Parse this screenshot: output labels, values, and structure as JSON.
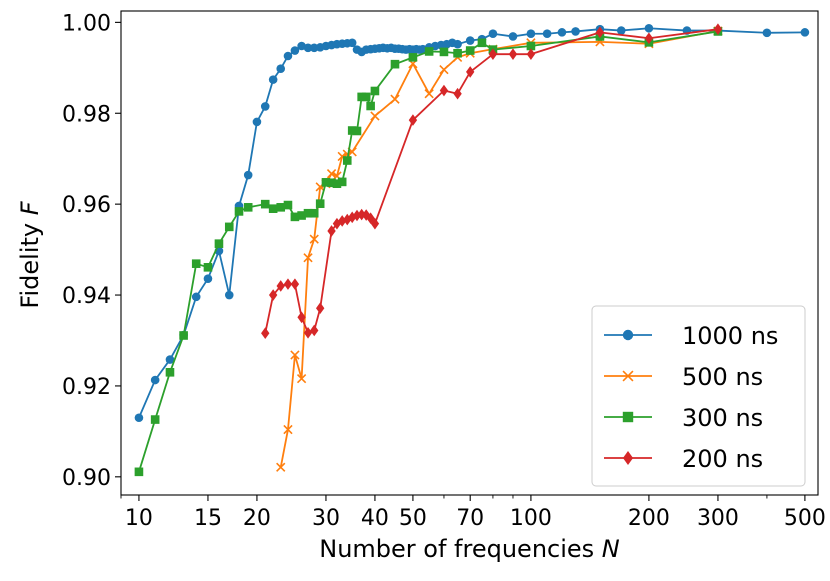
{
  "chart_data": {
    "type": "line",
    "xscale": "log",
    "xlim": [
      9,
      540
    ],
    "ylim": [
      0.896,
      1.0025
    ],
    "xlabel": "Number of frequencies",
    "xlabel_var": "N",
    "ylabel": "Fidelity",
    "ylabel_var": "F",
    "grid": false,
    "legend_position": "lower-right",
    "x_ticks": [
      10,
      15,
      20,
      30,
      40,
      50,
      70,
      100,
      200,
      300,
      500
    ],
    "x_tick_labels": [
      "10",
      "15",
      "20",
      "30",
      "40",
      "50",
      "70",
      "100",
      "200",
      "300",
      "500"
    ],
    "y_ticks": [
      0.9,
      0.92,
      0.94,
      0.96,
      0.98,
      1.0
    ],
    "y_tick_labels": [
      "0.90",
      "0.92",
      "0.94",
      "0.96",
      "0.98",
      "1.00"
    ],
    "series": [
      {
        "name": "1000 ns",
        "color": "#1f77b4",
        "marker": "circle",
        "points": [
          [
            10,
            0.913
          ],
          [
            11,
            0.9213
          ],
          [
            12,
            0.9258
          ],
          [
            13,
            0.9312
          ],
          [
            14,
            0.9396
          ],
          [
            15,
            0.9436
          ],
          [
            16,
            0.9497
          ],
          [
            17,
            0.94
          ],
          [
            18,
            0.9596
          ],
          [
            19,
            0.9664
          ],
          [
            20,
            0.9781
          ],
          [
            21,
            0.9815
          ],
          [
            22,
            0.9874
          ],
          [
            23,
            0.9898
          ],
          [
            24,
            0.9926
          ],
          [
            25,
            0.9938
          ],
          [
            26,
            0.9948
          ],
          [
            27,
            0.9944
          ],
          [
            28,
            0.9944
          ],
          [
            29,
            0.9945
          ],
          [
            30,
            0.9948
          ],
          [
            31,
            0.995
          ],
          [
            32,
            0.9952
          ],
          [
            33,
            0.9953
          ],
          [
            34,
            0.9954
          ],
          [
            35,
            0.9955
          ],
          [
            36,
            0.994
          ],
          [
            37,
            0.9935
          ],
          [
            38,
            0.994
          ],
          [
            39,
            0.9941
          ],
          [
            40,
            0.9942
          ],
          [
            41,
            0.9943
          ],
          [
            42,
            0.9944
          ],
          [
            43,
            0.9943
          ],
          [
            44,
            0.9944
          ],
          [
            45,
            0.9942
          ],
          [
            46,
            0.9942
          ],
          [
            47,
            0.9941
          ],
          [
            48,
            0.994
          ],
          [
            49,
            0.9941
          ],
          [
            50,
            0.994
          ],
          [
            51,
            0.9941
          ],
          [
            52,
            0.994
          ],
          [
            53,
            0.9941
          ],
          [
            55,
            0.9945
          ],
          [
            57,
            0.9948
          ],
          [
            59,
            0.995
          ],
          [
            61,
            0.9952
          ],
          [
            63,
            0.9955
          ],
          [
            65,
            0.9952
          ],
          [
            70,
            0.996
          ],
          [
            75,
            0.9963
          ],
          [
            80,
            0.9975
          ],
          [
            90,
            0.9969
          ],
          [
            100,
            0.9975
          ],
          [
            110,
            0.9975
          ],
          [
            120,
            0.9978
          ],
          [
            130,
            0.998
          ],
          [
            150,
            0.9985
          ],
          [
            170,
            0.9982
          ],
          [
            200,
            0.9987
          ],
          [
            250,
            0.9982
          ],
          [
            300,
            0.9982
          ],
          [
            400,
            0.9977
          ],
          [
            500,
            0.9978
          ]
        ]
      },
      {
        "name": "500 ns",
        "color": "#ff7f0e",
        "marker": "x",
        "points": [
          [
            23,
            0.9021
          ],
          [
            24,
            0.9104
          ],
          [
            25,
            0.9268
          ],
          [
            26,
            0.9216
          ],
          [
            27,
            0.9482
          ],
          [
            28,
            0.9523
          ],
          [
            29,
            0.9638
          ],
          [
            30,
            0.9645
          ],
          [
            31,
            0.9667
          ],
          [
            32,
            0.9662
          ],
          [
            33,
            0.9705
          ],
          [
            34,
            0.971
          ],
          [
            35,
            0.9715
          ],
          [
            40,
            0.9794
          ],
          [
            45,
            0.9831
          ],
          [
            50,
            0.9909
          ],
          [
            55,
            0.9843
          ],
          [
            60,
            0.9896
          ],
          [
            65,
            0.9923
          ],
          [
            70,
            0.9932
          ],
          [
            80,
            0.9941
          ],
          [
            100,
            0.9955
          ],
          [
            150,
            0.9957
          ],
          [
            200,
            0.9953
          ],
          [
            300,
            0.9981
          ]
        ]
      },
      {
        "name": "300 ns",
        "color": "#2ca02c",
        "marker": "square",
        "points": [
          [
            10,
            0.9011
          ],
          [
            11,
            0.9126
          ],
          [
            12,
            0.923
          ],
          [
            13,
            0.9311
          ],
          [
            14,
            0.9469
          ],
          [
            15,
            0.9461
          ],
          [
            16,
            0.9513
          ],
          [
            17,
            0.955
          ],
          [
            18,
            0.9584
          ],
          [
            19,
            0.9593
          ],
          [
            21,
            0.96
          ],
          [
            22,
            0.959
          ],
          [
            23,
            0.9593
          ],
          [
            24,
            0.9598
          ],
          [
            25,
            0.9572
          ],
          [
            26,
            0.9575
          ],
          [
            27,
            0.958
          ],
          [
            28,
            0.958
          ],
          [
            29,
            0.9601
          ],
          [
            30,
            0.9648
          ],
          [
            31,
            0.9647
          ],
          [
            32,
            0.9645
          ],
          [
            33,
            0.9649
          ],
          [
            34,
            0.9696
          ],
          [
            35,
            0.9762
          ],
          [
            36,
            0.9761
          ],
          [
            37,
            0.9836
          ],
          [
            38,
            0.9836
          ],
          [
            39,
            0.9816
          ],
          [
            40,
            0.9849
          ],
          [
            45,
            0.9908
          ],
          [
            50,
            0.9923
          ],
          [
            55,
            0.9936
          ],
          [
            60,
            0.9935
          ],
          [
            65,
            0.9932
          ],
          [
            70,
            0.9938
          ],
          [
            75,
            0.9955
          ],
          [
            80,
            0.994
          ],
          [
            100,
            0.9948
          ],
          [
            150,
            0.9969
          ],
          [
            200,
            0.9956
          ],
          [
            300,
            0.998
          ]
        ]
      },
      {
        "name": "200 ns",
        "color": "#d62728",
        "marker": "diamond",
        "points": [
          [
            21,
            0.9316
          ],
          [
            22,
            0.94
          ],
          [
            23,
            0.942
          ],
          [
            24,
            0.9424
          ],
          [
            25,
            0.9424
          ],
          [
            26,
            0.9351
          ],
          [
            27,
            0.9317
          ],
          [
            28,
            0.9322
          ],
          [
            29,
            0.9371
          ],
          [
            31,
            0.9541
          ],
          [
            32,
            0.9557
          ],
          [
            33,
            0.9563
          ],
          [
            34,
            0.9566
          ],
          [
            35,
            0.9571
          ],
          [
            36,
            0.9575
          ],
          [
            37,
            0.9577
          ],
          [
            38,
            0.9576
          ],
          [
            39,
            0.9569
          ],
          [
            40,
            0.9557
          ],
          [
            50,
            0.9785
          ],
          [
            60,
            0.985
          ],
          [
            65,
            0.9843
          ],
          [
            70,
            0.9891
          ],
          [
            80,
            0.993
          ],
          [
            90,
            0.993
          ],
          [
            100,
            0.993
          ],
          [
            150,
            0.9978
          ],
          [
            200,
            0.9965
          ],
          [
            300,
            0.9985
          ]
        ]
      }
    ]
  }
}
